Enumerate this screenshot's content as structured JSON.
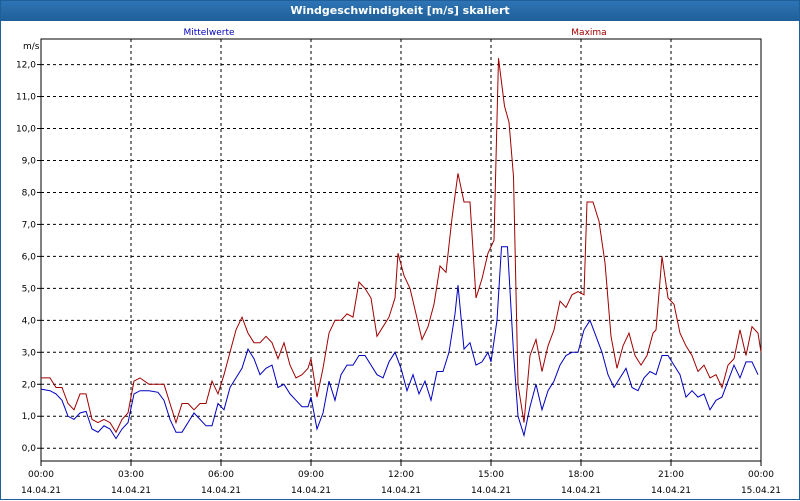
{
  "window": {
    "title": "Windgeschwindigkeit [m/s] skaliert"
  },
  "chart_data": {
    "type": "line",
    "title": "Windgeschwindigkeit [m/s] skaliert",
    "ylabel": "m/s",
    "xlabel": "",
    "ylim": [
      -0.4,
      12.8
    ],
    "xlim": [
      0,
      24
    ],
    "grid": true,
    "y_ticks": [
      "0,0",
      "1,0",
      "2,0",
      "3,0",
      "4,0",
      "5,0",
      "6,0",
      "7,0",
      "8,0",
      "9,0",
      "10,0",
      "11,0",
      "12,0"
    ],
    "x_ticks": [
      {
        "time": "00:00",
        "date": "14.04.21"
      },
      {
        "time": "03:00",
        "date": "14.04.21"
      },
      {
        "time": "06:00",
        "date": "14.04.21"
      },
      {
        "time": "09:00",
        "date": "14.04.21"
      },
      {
        "time": "12:00",
        "date": "14.04.21"
      },
      {
        "time": "15:00",
        "date": "14.04.21"
      },
      {
        "time": "18:00",
        "date": "14.04.21"
      },
      {
        "time": "21:00",
        "date": "14.04.21"
      },
      {
        "time": "00:00",
        "date": "15.04.21"
      }
    ],
    "series": [
      {
        "name": "Mittelwerte",
        "color": "#0000c0",
        "points": [
          [
            0,
            1.85
          ],
          [
            0.3,
            1.8
          ],
          [
            0.5,
            1.7
          ],
          [
            0.7,
            1.5
          ],
          [
            0.9,
            1.0
          ],
          [
            1.1,
            0.9
          ],
          [
            1.3,
            1.1
          ],
          [
            1.5,
            1.15
          ],
          [
            1.7,
            0.6
          ],
          [
            1.9,
            0.5
          ],
          [
            2.1,
            0.7
          ],
          [
            2.3,
            0.6
          ],
          [
            2.5,
            0.3
          ],
          [
            2.7,
            0.6
          ],
          [
            2.9,
            0.8
          ],
          [
            3.1,
            1.7
          ],
          [
            3.3,
            1.8
          ],
          [
            3.6,
            1.8
          ],
          [
            3.9,
            1.75
          ],
          [
            4.1,
            1.5
          ],
          [
            4.3,
            0.9
          ],
          [
            4.5,
            0.5
          ],
          [
            4.7,
            0.5
          ],
          [
            4.9,
            0.8
          ],
          [
            5.1,
            1.1
          ],
          [
            5.3,
            0.9
          ],
          [
            5.5,
            0.7
          ],
          [
            5.7,
            0.7
          ],
          [
            5.9,
            1.4
          ],
          [
            6.1,
            1.2
          ],
          [
            6.3,
            1.9
          ],
          [
            6.5,
            2.2
          ],
          [
            6.7,
            2.5
          ],
          [
            6.9,
            3.1
          ],
          [
            7.1,
            2.8
          ],
          [
            7.3,
            2.3
          ],
          [
            7.5,
            2.5
          ],
          [
            7.7,
            2.6
          ],
          [
            7.9,
            1.9
          ],
          [
            8.1,
            2.0
          ],
          [
            8.3,
            1.7
          ],
          [
            8.5,
            1.5
          ],
          [
            8.7,
            1.3
          ],
          [
            8.9,
            1.3
          ],
          [
            9.0,
            1.6
          ],
          [
            9.2,
            0.6
          ],
          [
            9.4,
            1.1
          ],
          [
            9.6,
            2.1
          ],
          [
            9.8,
            1.5
          ],
          [
            10.0,
            2.3
          ],
          [
            10.2,
            2.6
          ],
          [
            10.4,
            2.6
          ],
          [
            10.6,
            2.9
          ],
          [
            10.8,
            2.9
          ],
          [
            11.0,
            2.6
          ],
          [
            11.2,
            2.3
          ],
          [
            11.4,
            2.2
          ],
          [
            11.6,
            2.7
          ],
          [
            11.8,
            3.0
          ],
          [
            12.0,
            2.5
          ],
          [
            12.2,
            1.8
          ],
          [
            12.4,
            2.3
          ],
          [
            12.6,
            1.7
          ],
          [
            12.8,
            2.1
          ],
          [
            13.0,
            1.5
          ],
          [
            13.2,
            2.4
          ],
          [
            13.4,
            2.4
          ],
          [
            13.6,
            3.0
          ],
          [
            13.8,
            4.2
          ],
          [
            13.9,
            5.1
          ],
          [
            14.1,
            3.1
          ],
          [
            14.3,
            3.3
          ],
          [
            14.5,
            2.6
          ],
          [
            14.7,
            2.7
          ],
          [
            14.9,
            3.0
          ],
          [
            15.0,
            2.7
          ],
          [
            15.2,
            4.0
          ],
          [
            15.35,
            6.3
          ],
          [
            15.55,
            6.3
          ],
          [
            15.75,
            3.0
          ],
          [
            15.9,
            1.0
          ],
          [
            16.1,
            0.4
          ],
          [
            16.3,
            1.3
          ],
          [
            16.5,
            2.0
          ],
          [
            16.7,
            1.2
          ],
          [
            16.9,
            1.8
          ],
          [
            17.1,
            2.1
          ],
          [
            17.3,
            2.6
          ],
          [
            17.5,
            2.9
          ],
          [
            17.7,
            3.0
          ],
          [
            17.9,
            3.0
          ],
          [
            18.1,
            3.7
          ],
          [
            18.3,
            4.0
          ],
          [
            18.5,
            3.5
          ],
          [
            18.7,
            3.0
          ],
          [
            18.9,
            2.3
          ],
          [
            19.1,
            1.9
          ],
          [
            19.3,
            2.2
          ],
          [
            19.5,
            2.5
          ],
          [
            19.7,
            1.9
          ],
          [
            19.9,
            1.8
          ],
          [
            20.1,
            2.2
          ],
          [
            20.3,
            2.4
          ],
          [
            20.5,
            2.3
          ],
          [
            20.7,
            2.9
          ],
          [
            20.9,
            2.9
          ],
          [
            21.1,
            2.6
          ],
          [
            21.3,
            2.3
          ],
          [
            21.5,
            1.6
          ],
          [
            21.7,
            1.8
          ],
          [
            21.9,
            1.6
          ],
          [
            22.1,
            1.7
          ],
          [
            22.3,
            1.2
          ],
          [
            22.5,
            1.5
          ],
          [
            22.7,
            1.6
          ],
          [
            22.9,
            2.1
          ],
          [
            23.1,
            2.6
          ],
          [
            23.3,
            2.2
          ],
          [
            23.5,
            2.7
          ],
          [
            23.7,
            2.7
          ],
          [
            23.9,
            2.3
          ]
        ]
      },
      {
        "name": "Maxima",
        "color": "#a00000",
        "points": [
          [
            0,
            2.2
          ],
          [
            0.3,
            2.2
          ],
          [
            0.5,
            1.9
          ],
          [
            0.7,
            1.9
          ],
          [
            0.9,
            1.4
          ],
          [
            1.1,
            1.2
          ],
          [
            1.3,
            1.7
          ],
          [
            1.5,
            1.7
          ],
          [
            1.7,
            0.9
          ],
          [
            1.9,
            0.8
          ],
          [
            2.1,
            0.9
          ],
          [
            2.3,
            0.8
          ],
          [
            2.5,
            0.5
          ],
          [
            2.7,
            0.9
          ],
          [
            2.9,
            1.1
          ],
          [
            3.1,
            2.1
          ],
          [
            3.3,
            2.2
          ],
          [
            3.6,
            2.0
          ],
          [
            3.9,
            2.0
          ],
          [
            4.1,
            2.0
          ],
          [
            4.3,
            1.4
          ],
          [
            4.5,
            0.8
          ],
          [
            4.7,
            1.4
          ],
          [
            4.9,
            1.4
          ],
          [
            5.1,
            1.2
          ],
          [
            5.3,
            1.4
          ],
          [
            5.5,
            1.4
          ],
          [
            5.7,
            2.1
          ],
          [
            5.9,
            1.7
          ],
          [
            6.1,
            2.3
          ],
          [
            6.3,
            3.0
          ],
          [
            6.5,
            3.7
          ],
          [
            6.7,
            4.1
          ],
          [
            6.9,
            3.6
          ],
          [
            7.1,
            3.3
          ],
          [
            7.3,
            3.3
          ],
          [
            7.5,
            3.5
          ],
          [
            7.7,
            3.3
          ],
          [
            7.9,
            2.8
          ],
          [
            8.1,
            3.3
          ],
          [
            8.3,
            2.6
          ],
          [
            8.5,
            2.2
          ],
          [
            8.7,
            2.3
          ],
          [
            8.9,
            2.5
          ],
          [
            9.0,
            2.8
          ],
          [
            9.2,
            1.6
          ],
          [
            9.4,
            2.5
          ],
          [
            9.6,
            3.6
          ],
          [
            9.8,
            4.0
          ],
          [
            10.0,
            4.0
          ],
          [
            10.2,
            4.2
          ],
          [
            10.4,
            4.1
          ],
          [
            10.6,
            5.2
          ],
          [
            10.8,
            5.0
          ],
          [
            11.0,
            4.7
          ],
          [
            11.2,
            3.5
          ],
          [
            11.4,
            3.8
          ],
          [
            11.6,
            4.1
          ],
          [
            11.8,
            4.7
          ],
          [
            11.9,
            6.1
          ],
          [
            12.1,
            5.4
          ],
          [
            12.3,
            5.0
          ],
          [
            12.5,
            4.2
          ],
          [
            12.7,
            3.4
          ],
          [
            12.9,
            3.8
          ],
          [
            13.1,
            4.5
          ],
          [
            13.3,
            5.7
          ],
          [
            13.5,
            5.5
          ],
          [
            13.7,
            7.2
          ],
          [
            13.9,
            8.6
          ],
          [
            14.1,
            7.7
          ],
          [
            14.3,
            7.7
          ],
          [
            14.5,
            4.7
          ],
          [
            14.7,
            5.3
          ],
          [
            14.9,
            6.1
          ],
          [
            15.1,
            6.5
          ],
          [
            15.25,
            12.2
          ],
          [
            15.45,
            10.7
          ],
          [
            15.6,
            10.2
          ],
          [
            15.75,
            8.5
          ],
          [
            15.9,
            2.0
          ],
          [
            16.1,
            0.8
          ],
          [
            16.3,
            2.9
          ],
          [
            16.5,
            3.4
          ],
          [
            16.7,
            2.4
          ],
          [
            16.9,
            3.2
          ],
          [
            17.1,
            3.7
          ],
          [
            17.3,
            4.6
          ],
          [
            17.5,
            4.4
          ],
          [
            17.7,
            4.8
          ],
          [
            17.9,
            4.9
          ],
          [
            18.1,
            4.8
          ],
          [
            18.2,
            7.7
          ],
          [
            18.4,
            7.7
          ],
          [
            18.6,
            7.1
          ],
          [
            18.8,
            5.8
          ],
          [
            19.0,
            3.5
          ],
          [
            19.2,
            2.5
          ],
          [
            19.4,
            3.2
          ],
          [
            19.6,
            3.6
          ],
          [
            19.8,
            2.9
          ],
          [
            20.0,
            2.6
          ],
          [
            20.2,
            2.9
          ],
          [
            20.4,
            3.6
          ],
          [
            20.5,
            3.7
          ],
          [
            20.7,
            6.0
          ],
          [
            20.9,
            4.7
          ],
          [
            21.1,
            4.5
          ],
          [
            21.3,
            3.6
          ],
          [
            21.5,
            3.2
          ],
          [
            21.7,
            2.9
          ],
          [
            21.9,
            2.4
          ],
          [
            22.1,
            2.6
          ],
          [
            22.3,
            2.2
          ],
          [
            22.5,
            2.3
          ],
          [
            22.7,
            1.9
          ],
          [
            22.9,
            2.6
          ],
          [
            23.1,
            2.8
          ],
          [
            23.3,
            3.7
          ],
          [
            23.5,
            2.9
          ],
          [
            23.7,
            3.8
          ],
          [
            23.9,
            3.6
          ],
          [
            24.0,
            3.0
          ]
        ]
      }
    ]
  }
}
